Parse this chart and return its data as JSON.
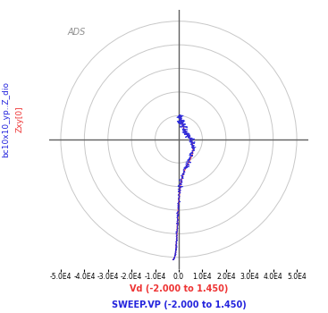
{
  "title": "ADS",
  "xlabel_red": "Vd (-2.000 to 1.450)",
  "xlabel_blue": "SWEEP.VP (-2.000 to 1.450)",
  "ylabel_blue": "bc10x10_yp..Z_dio",
  "ylabel_red": "Zxy[0]",
  "xlim": [
    -55000,
    55000
  ],
  "ylim": [
    -55000,
    55000
  ],
  "x_ticks": [
    -50000,
    -40000,
    -30000,
    -20000,
    -10000,
    0,
    10000,
    20000,
    30000,
    40000,
    50000
  ],
  "x_tick_labels": [
    "-5.0E4",
    "-4.0E4",
    "-3.0E4",
    "-2.0E4",
    "-1.0E4",
    "0.0",
    "1.0E4",
    "2.0E4",
    "3.0E4",
    "4.0E4",
    "5.0E4"
  ],
  "circle_radii": [
    10000,
    20000,
    30000,
    40000,
    50000
  ],
  "background_color": "#ffffff",
  "grid_color": "#c8c8c8",
  "axis_color": "#606060",
  "title_color": "#909090",
  "line_blue_color": "#2222dd",
  "line_red_color": "#ee3333",
  "curve_smooth_x": [
    500,
    1000,
    2000,
    3500,
    5000,
    6000,
    5500,
    3000,
    1000,
    200,
    -300,
    -500,
    -800,
    -1000,
    -1200,
    -1500,
    -2000,
    -2500
  ],
  "curve_smooth_y": [
    10000,
    8000,
    5000,
    2000,
    0,
    -3000,
    -7000,
    -12000,
    -18000,
    -24000,
    -30000,
    -35000,
    -40000,
    -44000,
    -47000,
    -49000,
    -50500,
    -51000
  ]
}
